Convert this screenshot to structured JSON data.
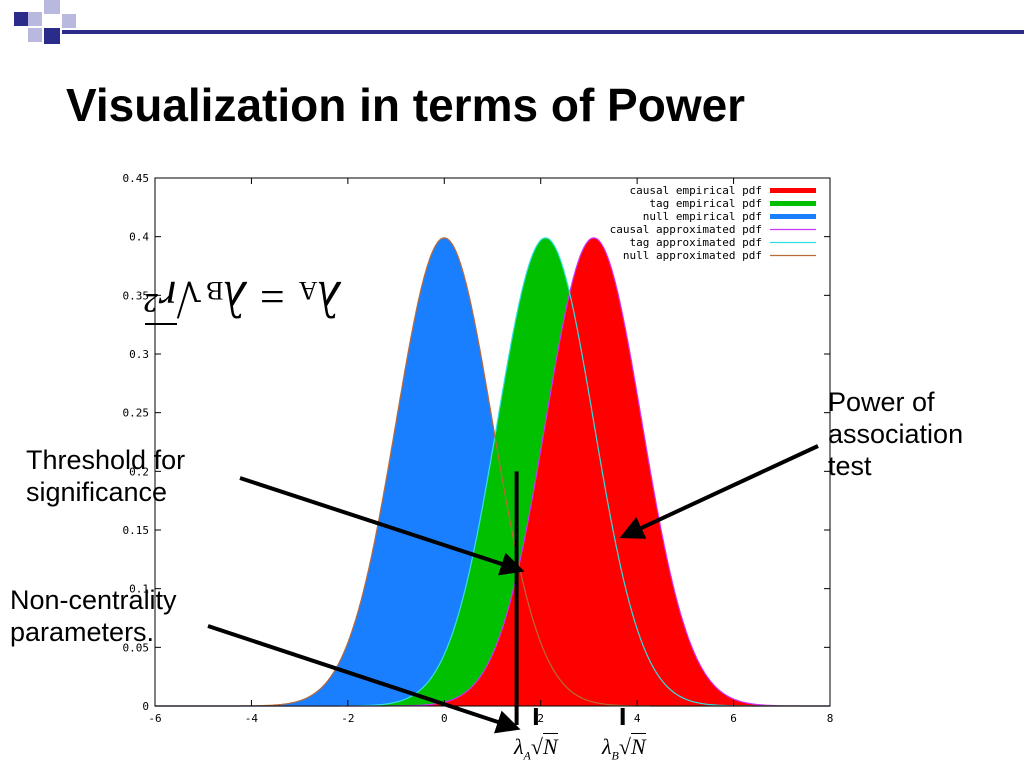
{
  "slide": {
    "title": "Visualization in terms of Power",
    "accent_color": "#2b2b8a",
    "deco_light_color": "#b9b9e0"
  },
  "annotations": {
    "power": [
      "Power of",
      "association",
      "test"
    ],
    "threshold": [
      "Threshold for",
      "significance"
    ],
    "noncentrality": [
      "Non-centrality",
      "parameters."
    ]
  },
  "formulas": {
    "lambda_a_mark": {
      "symbol": "λ",
      "sub": "A",
      "root": "N"
    },
    "lambda_b_mark": {
      "symbol": "λ",
      "sub": "B",
      "root": "N"
    },
    "relation": {
      "lhs": "λ",
      "lhs_sub": "A",
      "eq": "=",
      "rhs": "λ",
      "rhs_sub": "B",
      "root": "r²"
    }
  },
  "chart_data": {
    "type": "area",
    "xlim": [
      -6,
      8
    ],
    "ylim": [
      0,
      0.45
    ],
    "xticks": [
      "-6",
      "-4",
      "-2",
      "0",
      "2",
      "4",
      "6",
      "8"
    ],
    "yticks": [
      "0",
      "0.05",
      "0.1",
      "0.15",
      "0.2",
      "0.25",
      "0.3",
      "0.35",
      "0.4",
      "0.45"
    ],
    "legend_position": "top-right",
    "threshold_x": 1.5,
    "lambda_a_x": 1.9,
    "lambda_b_x": 3.7,
    "series": [
      {
        "name": "null empirical pdf",
        "kind": "filled",
        "color": "#1a7fff",
        "mean": 0,
        "sd": 1
      },
      {
        "name": "tag empirical pdf",
        "kind": "filled",
        "color": "#00c000",
        "mean": 2.1,
        "sd": 1
      },
      {
        "name": "causal empirical pdf",
        "kind": "filled",
        "color": "#ff0000",
        "mean": 3.1,
        "sd": 1
      },
      {
        "name": "causal approximated pdf",
        "kind": "line",
        "color": "#cc33ff",
        "mean": 3.1,
        "sd": 1
      },
      {
        "name": "tag approximated pdf",
        "kind": "line",
        "color": "#33e0e0",
        "mean": 2.1,
        "sd": 1
      },
      {
        "name": "null approximated pdf",
        "kind": "line",
        "color": "#b86a3a",
        "mean": 0,
        "sd": 1
      }
    ],
    "legend_order": [
      "causal empirical pdf",
      "tag empirical pdf",
      "null empirical pdf",
      "causal approximated pdf",
      "tag approximated pdf",
      "null approximated pdf"
    ]
  }
}
